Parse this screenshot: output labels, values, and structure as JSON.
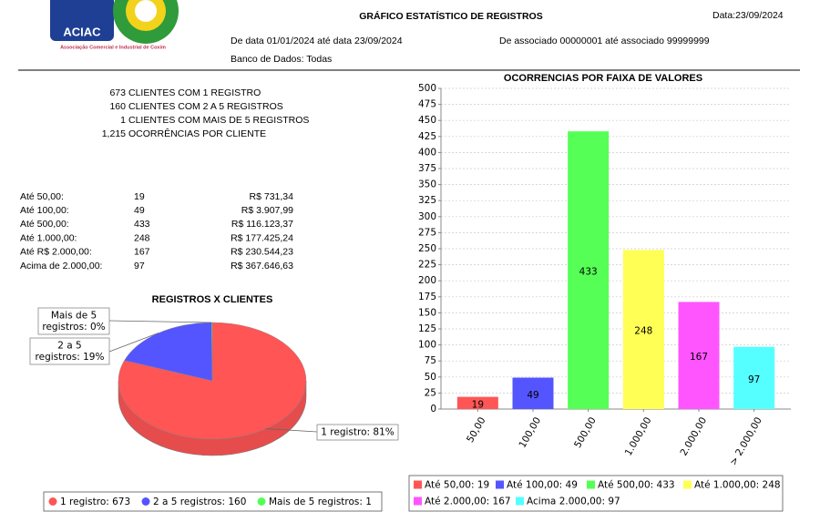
{
  "header": {
    "logo_name": "ACIAC",
    "logo_caption": "Associação Comercial e Industrial de Coxim",
    "title": "GRÁFICO ESTATÍSTICO DE REGISTROS",
    "date": "Data:23/09/2024",
    "date_range": "De data 01/01/2024 até data 23/09/2024",
    "associate_range": "De associado 00000001 até associado 99999999",
    "database": "Banco de Dados: Todas"
  },
  "summary": [
    [
      "673",
      "CLIENTES COM 1 REGISTRO"
    ],
    [
      "160",
      "CLIENTES COM 2 A 5 REGISTROS"
    ],
    [
      "1",
      "CLIENTES COM MAIS DE 5 REGISTROS"
    ],
    [
      "1,215",
      "OCORRÊNCIAS POR CLIENTE"
    ]
  ],
  "table": {
    "rows": [
      [
        "Até 50,00:",
        "19",
        "R$ 731,34"
      ],
      [
        "Até 100,00:",
        "49",
        "R$ 3.907,99"
      ],
      [
        "Até 500,00:",
        "433",
        "R$ 116.123,37"
      ],
      [
        "Até 1.000,00:",
        "248",
        "R$ 177.425,24"
      ],
      [
        "Até R$ 2.000,00:",
        "167",
        "R$ 230.544,23"
      ],
      [
        "Acima de 2.000,00:",
        "97",
        "R$ 367.646,63"
      ]
    ]
  },
  "chart_data": [
    {
      "type": "pie",
      "title": "REGISTROS X CLIENTES",
      "values": [
        673,
        160,
        1
      ],
      "colors": [
        "#ff5555",
        "#5555ff",
        "#55ff55"
      ],
      "slice_labels": [
        [
          "1 registro:  81%"
        ],
        [
          "2 a 5",
          "registros:  19%"
        ],
        [
          "Mais de 5",
          "registros:  0%"
        ]
      ],
      "legend_labels": [
        "1 registro:  673",
        "2 a 5 registros:  160",
        "Mais de 5 registros:  1"
      ]
    },
    {
      "type": "bar",
      "title": "OCORRENCIAS POR FAIXA DE VALORES",
      "categories": [
        "50,00",
        "100,00",
        "500,00",
        "1.000,00",
        "2.000,00",
        "> 2.000,00"
      ],
      "values": [
        19,
        49,
        433,
        248,
        167,
        97
      ],
      "colors": [
        "#ff5555",
        "#5555ff",
        "#55ff55",
        "#ffff55",
        "#ff55ff",
        "#55ffff"
      ],
      "ylim": [
        0,
        500
      ],
      "yticks": [
        0,
        25,
        50,
        75,
        100,
        125,
        150,
        175,
        200,
        225,
        250,
        275,
        300,
        325,
        350,
        375,
        400,
        425,
        450,
        475,
        500
      ],
      "grid": true,
      "legend_labels": [
        "Até 50,00: 19",
        "Até 100,00: 49",
        "Até 500,00: 433",
        "Até 1.000,00: 248",
        "Até 2.000,00: 167",
        "Acima 2.000,00: 97"
      ]
    }
  ]
}
